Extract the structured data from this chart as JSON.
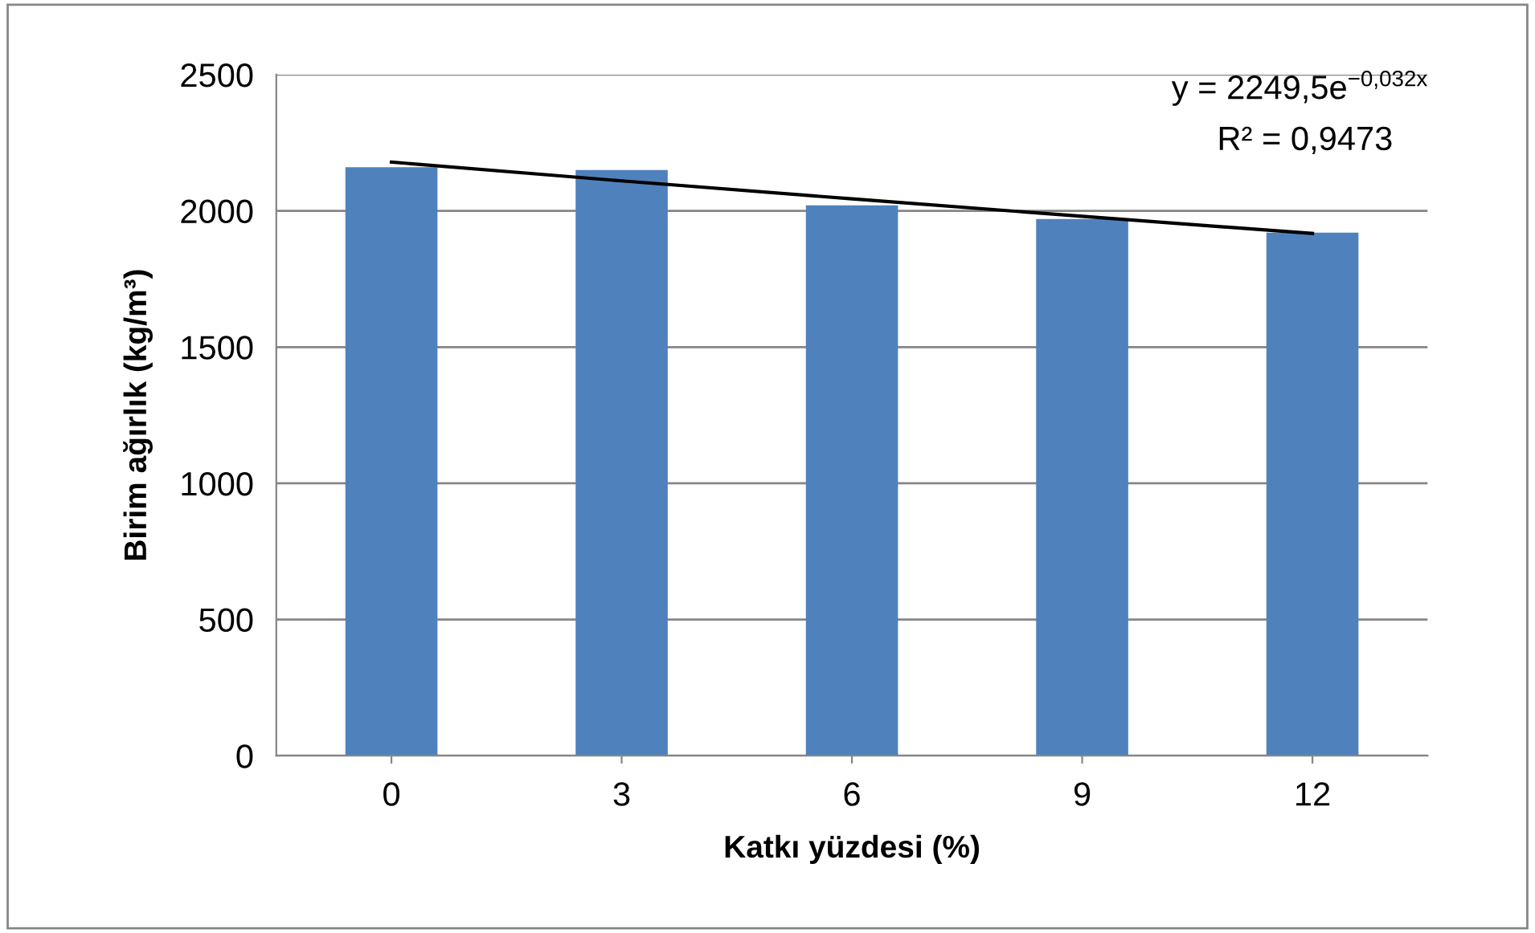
{
  "chart_data": {
    "type": "bar",
    "xlabel": "Katkı yüzdesi (%)",
    "ylabel": "Birim ağırlık (kg/m³)",
    "categories": [
      "0",
      "3",
      "6",
      "9",
      "12"
    ],
    "series": [
      {
        "color": "#4f81bd",
        "values": [
          2160,
          2150,
          2020,
          1970,
          1920
        ]
      },
      {
        "type": "line",
        "color": "#000000",
        "values": [
          2179,
          2110,
          2044,
          1980,
          1917
        ],
        "marker": "none",
        "line_style": "solid"
      }
    ],
    "ylim": [
      0,
      2500
    ],
    "yticks": [
      0,
      500,
      1000,
      1500,
      2000,
      2500
    ],
    "grid": "y",
    "annotations": [
      "y = 2249,5e$^{−0,032x}$",
      "R² = 0,9473"
    ]
  }
}
